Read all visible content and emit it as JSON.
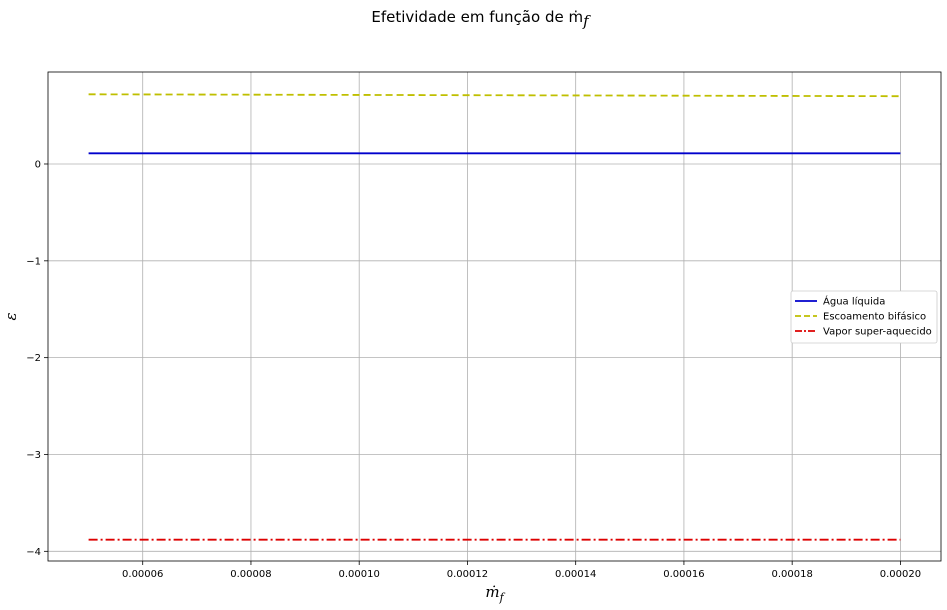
{
  "chart_data": {
    "type": "line",
    "title": "Efetividade em função de ṁ",
    "title_subscript": "f",
    "xlabel": "ṁ",
    "xlabel_subscript": "f",
    "ylabel": "ε",
    "x": [
      5e-05,
      0.0002
    ],
    "xlim": [
      4.25e-05,
      0.0002075
    ],
    "ylim": [
      -4.1,
      0.95
    ],
    "xticks": [
      6e-05,
      8e-05,
      0.0001,
      0.00012,
      0.00014,
      0.00016,
      0.00018,
      0.0002
    ],
    "xtick_labels": [
      "0.00006",
      "0.00008",
      "0.00010",
      "0.00012",
      "0.00014",
      "0.00016",
      "0.00018",
      "0.00020"
    ],
    "yticks": [
      0,
      -1,
      -2,
      -3,
      -4
    ],
    "ytick_labels": [
      "0",
      "−1",
      "−2",
      "−3",
      "−4"
    ],
    "grid": true,
    "legend_position": "center-right",
    "series": [
      {
        "name": "Água líquida",
        "values": [
          0.11,
          0.11
        ],
        "color": "#0000cc",
        "style": "solid"
      },
      {
        "name": "Escoamento bifásico",
        "values": [
          0.72,
          0.7
        ],
        "color": "#bfbf00",
        "style": "dashed"
      },
      {
        "name": "Vapor super-aquecido",
        "values": [
          -3.88,
          -3.88
        ],
        "color": "#dd0000",
        "style": "dashdot"
      }
    ]
  }
}
